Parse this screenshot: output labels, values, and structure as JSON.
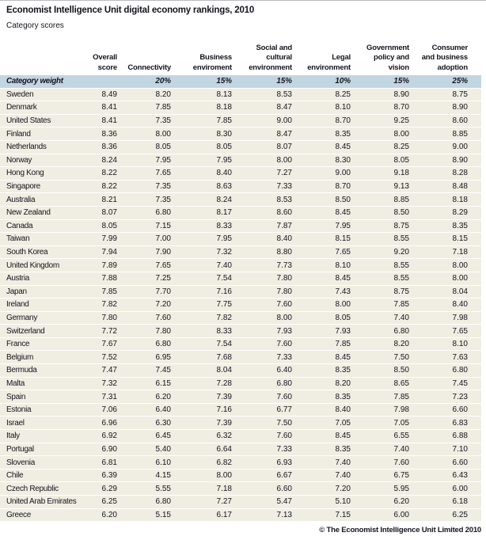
{
  "page": {
    "footer": "© The Economist Intelligence Unit Limited 2010"
  },
  "colors": {
    "text": "#14141e",
    "weight_row_bg": "#c2d6e2",
    "data_row_bg": "#f0ede2",
    "separator": "#ffffff"
  },
  "chart_data": {
    "type": "table",
    "title": "Economist Intelligence Unit digital economy rankings, 2010",
    "subtitle": "Category scores",
    "columns": [
      {
        "label": ""
      },
      {
        "label": "Overall\nscore"
      },
      {
        "label": "Connectivity"
      },
      {
        "label": "Business\nenviroment"
      },
      {
        "label": "Social and\ncultural\nenvironment"
      },
      {
        "label": "Legal\nenvironment"
      },
      {
        "label": "Government\npolicy and\nvision"
      },
      {
        "label": "Consumer\nand business\nadoption"
      }
    ],
    "weight_row": {
      "label": "Category weight",
      "weights": [
        "",
        "20%",
        "15%",
        "15%",
        "10%",
        "15%",
        "25%"
      ]
    },
    "rows": [
      {
        "country": "Sweden",
        "values": [
          "8.49",
          "8.20",
          "8.13",
          "8.53",
          "8.25",
          "8.90",
          "8.75"
        ]
      },
      {
        "country": "Denmark",
        "values": [
          "8.41",
          "7.85",
          "8.18",
          "8.47",
          "8.10",
          "8.70",
          "8.90"
        ]
      },
      {
        "country": "United States",
        "values": [
          "8.41",
          "7.35",
          "7.85",
          "9.00",
          "8.70",
          "9.25",
          "8.60"
        ]
      },
      {
        "country": "Finland",
        "values": [
          "8.36",
          "8.00",
          "8.30",
          "8.47",
          "8.35",
          "8.00",
          "8.85"
        ]
      },
      {
        "country": "Netherlands",
        "values": [
          "8.36",
          "8.05",
          "8.05",
          "8.07",
          "8.45",
          "8.25",
          "9.00"
        ]
      },
      {
        "country": "Norway",
        "values": [
          "8.24",
          "7.95",
          "7.95",
          "8.00",
          "8.30",
          "8.05",
          "8.90"
        ]
      },
      {
        "country": "Hong Kong",
        "values": [
          "8.22",
          "7.65",
          "8.40",
          "7.27",
          "9.00",
          "9.18",
          "8.28"
        ]
      },
      {
        "country": "Singapore",
        "values": [
          "8.22",
          "7.35",
          "8.63",
          "7.33",
          "8.70",
          "9.13",
          "8.48"
        ]
      },
      {
        "country": "Australia",
        "values": [
          "8.21",
          "7.35",
          "8.24",
          "8.53",
          "8.50",
          "8.85",
          "8.18"
        ]
      },
      {
        "country": "New Zealand",
        "values": [
          "8.07",
          "6.80",
          "8.17",
          "8.60",
          "8.45",
          "8.50",
          "8.29"
        ]
      },
      {
        "country": "Canada",
        "values": [
          "8.05",
          "7.15",
          "8.33",
          "7.87",
          "7.95",
          "8.75",
          "8.35"
        ]
      },
      {
        "country": "Taiwan",
        "values": [
          "7.99",
          "7.00",
          "7.95",
          "8.40",
          "8.15",
          "8.55",
          "8.15"
        ]
      },
      {
        "country": "South Korea",
        "values": [
          "7.94",
          "7.90",
          "7.32",
          "8.80",
          "7.65",
          "9.20",
          "7.18"
        ]
      },
      {
        "country": "United Kingdom",
        "values": [
          "7.89",
          "7.65",
          "7.40",
          "7.73",
          "8.10",
          "8.55",
          "8.00"
        ]
      },
      {
        "country": "Austria",
        "values": [
          "7.88",
          "7.25",
          "7.54",
          "7.80",
          "8.45",
          "8.55",
          "8.00"
        ]
      },
      {
        "country": "Japan",
        "values": [
          "7.85",
          "7.70",
          "7.16",
          "7.80",
          "7.43",
          "8.75",
          "8.04"
        ]
      },
      {
        "country": "Ireland",
        "values": [
          "7.82",
          "7.20",
          "7.75",
          "7.60",
          "8.00",
          "7.85",
          "8.40"
        ]
      },
      {
        "country": "Germany",
        "values": [
          "7.80",
          "7.60",
          "7.82",
          "8.00",
          "8.05",
          "7.40",
          "7.98"
        ]
      },
      {
        "country": "Switzerland",
        "values": [
          "7.72",
          "7.80",
          "8.33",
          "7.93",
          "7.93",
          "6.80",
          "7.65"
        ]
      },
      {
        "country": "France",
        "values": [
          "7.67",
          "6.80",
          "7.54",
          "7.60",
          "7.85",
          "8.20",
          "8.10"
        ]
      },
      {
        "country": "Belgium",
        "values": [
          "7.52",
          "6.95",
          "7.68",
          "7.33",
          "8.45",
          "7.50",
          "7.63"
        ]
      },
      {
        "country": "Bermuda",
        "values": [
          "7.47",
          "7.45",
          "8.04",
          "6.40",
          "8.35",
          "8.50",
          "6.80"
        ]
      },
      {
        "country": "Malta",
        "values": [
          "7.32",
          "6.15",
          "7.28",
          "6.80",
          "8.20",
          "8.65",
          "7.45"
        ]
      },
      {
        "country": "Spain",
        "values": [
          "7.31",
          "6.20",
          "7.39",
          "7.60",
          "8.35",
          "7.85",
          "7.23"
        ]
      },
      {
        "country": "Estonia",
        "values": [
          "7.06",
          "6.40",
          "7.16",
          "6.77",
          "8.40",
          "7.98",
          "6.60"
        ]
      },
      {
        "country": "Israel",
        "values": [
          "6.96",
          "6.30",
          "7.39",
          "7.50",
          "7.05",
          "7.05",
          "6.83"
        ]
      },
      {
        "country": "Italy",
        "values": [
          "6.92",
          "6.45",
          "6.32",
          "7.60",
          "8.45",
          "6.55",
          "6.88"
        ]
      },
      {
        "country": "Portugal",
        "values": [
          "6.90",
          "5.40",
          "6.64",
          "7.33",
          "8.35",
          "7.40",
          "7.10"
        ]
      },
      {
        "country": "Slovenia",
        "values": [
          "6.81",
          "6.10",
          "6.82",
          "6.93",
          "7.40",
          "7.60",
          "6.60"
        ]
      },
      {
        "country": "Chile",
        "values": [
          "6.39",
          "4.15",
          "8.00",
          "6.67",
          "7.40",
          "6.75",
          "6.43"
        ]
      },
      {
        "country": "Czech Republic",
        "values": [
          "6.29",
          "5.55",
          "7.18",
          "6.60",
          "7.20",
          "5.95",
          "6.00"
        ]
      },
      {
        "country": "United Arab Emirates",
        "values": [
          "6.25",
          "6.80",
          "7.27",
          "5.47",
          "5.10",
          "6.20",
          "6.18"
        ]
      },
      {
        "country": "Greece",
        "values": [
          "6.20",
          "5.15",
          "6.17",
          "7.13",
          "7.15",
          "6.00",
          "6.25"
        ]
      }
    ]
  }
}
